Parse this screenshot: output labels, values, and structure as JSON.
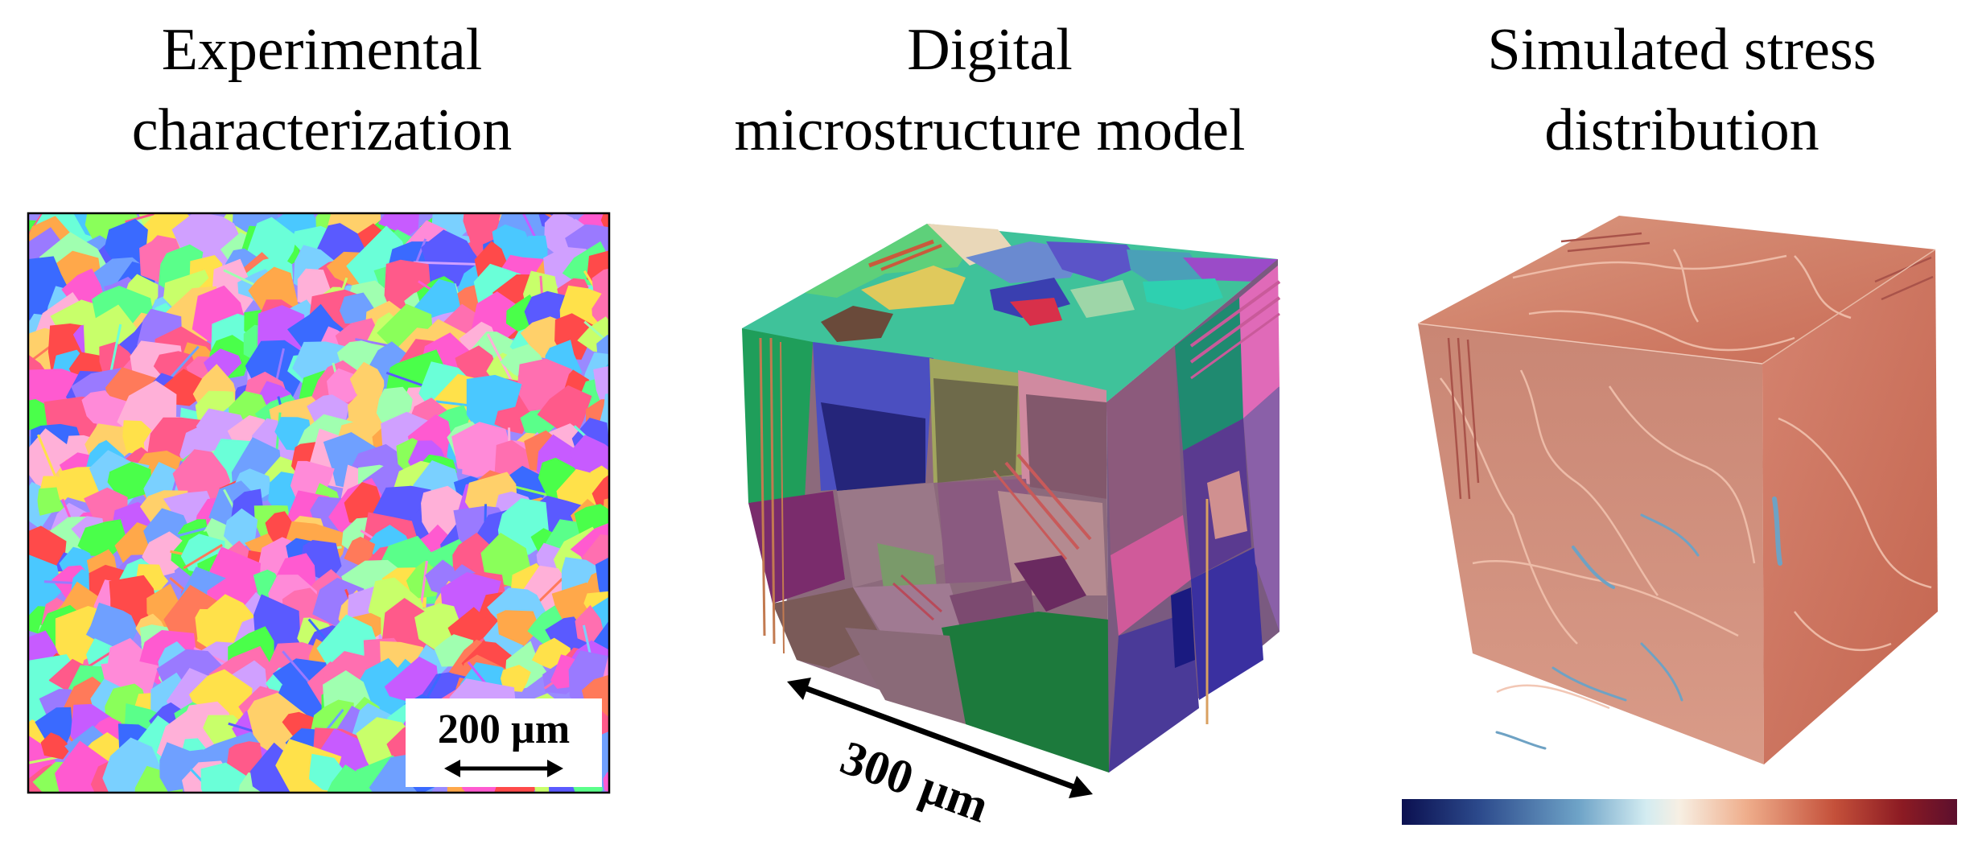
{
  "titles": {
    "left": "Experimental\ncharacterization",
    "middle": "Digital\nmicrostructure model",
    "right": "Simulated stress\ndistribution"
  },
  "scale_bars": {
    "ebsd": "200 µm",
    "cube": "300 µm"
  },
  "colors": {
    "colorbar_stops": [
      "#0b1050",
      "#2f5a9a",
      "#7fb6d6",
      "#d9eef2",
      "#f7efe2",
      "#f2b08c",
      "#c8553b",
      "#8e1a22",
      "#5a0f2c"
    ],
    "stress_face": "#cf7c68",
    "frame": "#000000"
  }
}
